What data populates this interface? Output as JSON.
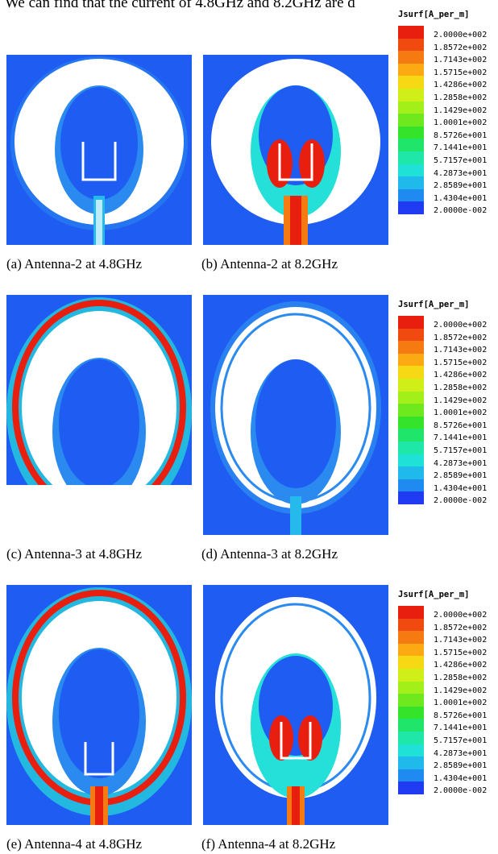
{
  "top_text": "We can find that the current of 4.8GHz and 8.2GHz are d",
  "legend": {
    "title": "Jsurf[A_per_m]",
    "ticks": [
      "2.0000e+002",
      "1.8572e+002",
      "1.7143e+002",
      "1.5715e+002",
      "1.4286e+002",
      "1.2858e+002",
      "1.1429e+002",
      "1.0001e+002",
      "8.5726e+001",
      "7.1441e+001",
      "5.7157e+001",
      "4.2873e+001",
      "2.8589e+001",
      "1.4304e+001",
      "2.0000e-002"
    ],
    "colors": [
      "#e81e0e",
      "#f14a10",
      "#f67a12",
      "#fbaa14",
      "#f6d815",
      "#d0ee18",
      "#a3ef1a",
      "#6fe81e",
      "#34e32a",
      "#1fe56b",
      "#1fe7a8",
      "#1fe1d8",
      "#1fb9ec",
      "#1f8af0",
      "#1f3cf2"
    ]
  },
  "captions": {
    "a": "(a) Antenna-2 at 4.8GHz",
    "b": "(b) Antenna-2 at 8.2GHz",
    "c": "(c) Antenna-3 at 4.8GHz",
    "d": "(d) Antenna-3 at 8.2GHz",
    "e": "(e) Antenna-4 at 4.8GHz",
    "f": "(f) Antenna-4 at 8.2GHz"
  },
  "colors": {
    "background_field": "#1f5cf2",
    "weak_field": "#2a8af0",
    "mid_field": "#25e0d8",
    "strong_field": "#e81e0e",
    "metal_gap": "#ffffff"
  }
}
